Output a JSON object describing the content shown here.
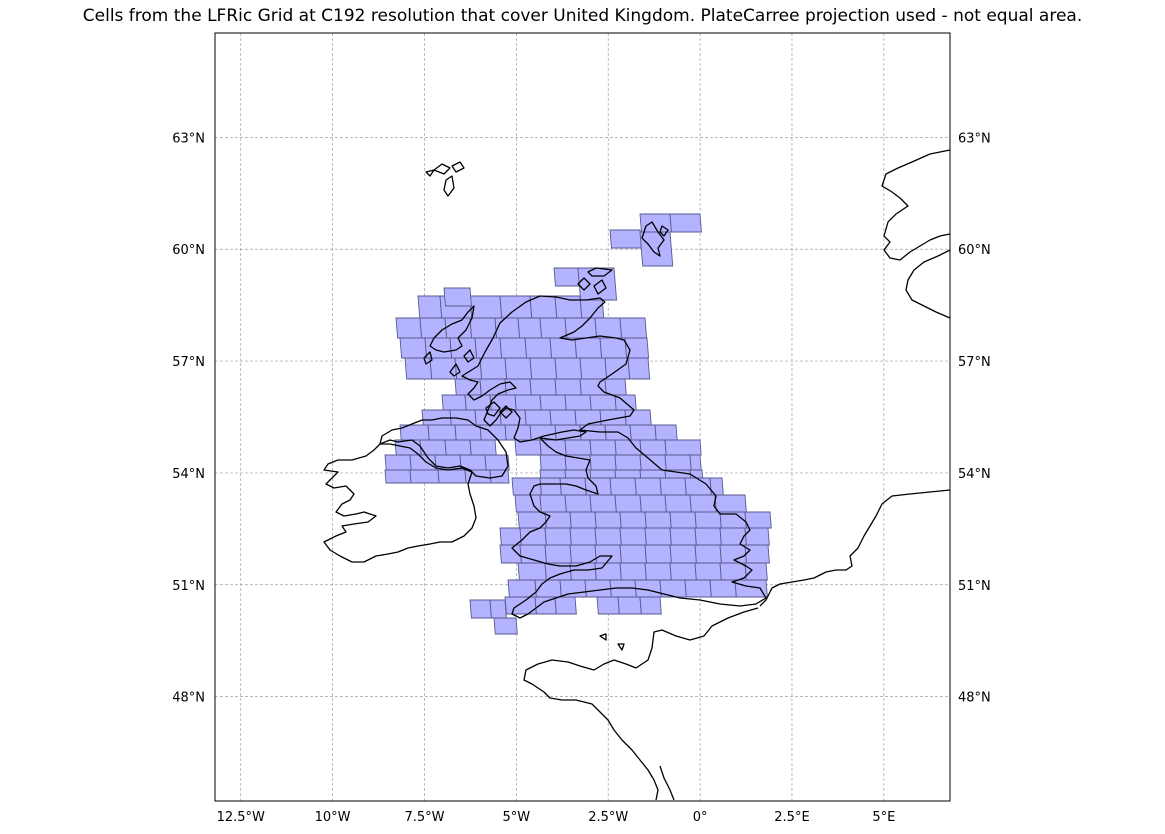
{
  "title": "Cells from the LFRic Grid at C192 resolution that cover United Kingdom. PlateCarree projection used - not equal area.",
  "map": {
    "projection": "PlateCarree",
    "lon_range": [
      -13.2,
      6.8
    ],
    "lat_range": [
      45.2,
      65.8
    ],
    "gridlines": true,
    "cell_fill_color": "#b3b3ff",
    "cell_edge_color": "#5a5a8c",
    "coastline_color": "#000000",
    "lon_ticks": [
      {
        "value": -12.5,
        "label": "12.5°W"
      },
      {
        "value": -10,
        "label": "10°W"
      },
      {
        "value": -7.5,
        "label": "7.5°W"
      },
      {
        "value": -5,
        "label": "5°W"
      },
      {
        "value": -2.5,
        "label": "2.5°W"
      },
      {
        "value": 0,
        "label": "0°"
      },
      {
        "value": 2.5,
        "label": "2.5°E"
      },
      {
        "value": 5,
        "label": "5°E"
      }
    ],
    "lat_ticks": [
      {
        "value": 48,
        "label": "48°N"
      },
      {
        "value": 51,
        "label": "51°N"
      },
      {
        "value": 54,
        "label": "54°N"
      },
      {
        "value": 57,
        "label": "57°N"
      },
      {
        "value": 60,
        "label": "60°N"
      },
      {
        "value": 63,
        "label": "63°N"
      }
    ]
  }
}
